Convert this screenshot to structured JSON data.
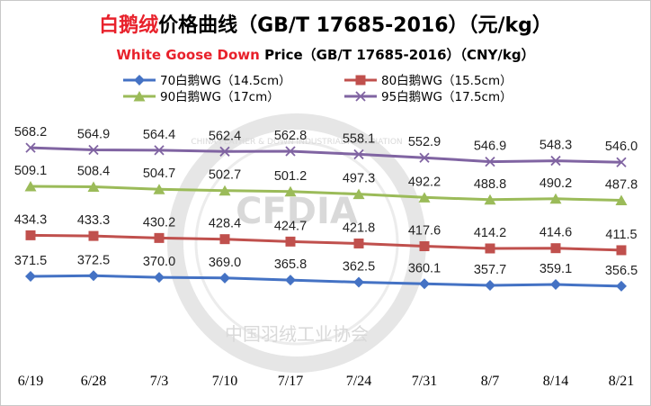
{
  "title": {
    "cn_red": "白鹅绒",
    "cn_rest": "价格曲线（GB/T 17685-2016）（元/kg）",
    "en_red": "White Goose Down",
    "en_rest": " Price（GB/T 17685-2016）（CNY/kg）"
  },
  "watermark": {
    "center": "CFDIA",
    "bottom": "中国羽绒工业协会",
    "ring": "CHINA FEATHER & DOWN INDUSTRIAL ASSOCIATION"
  },
  "colors": {
    "s70": "#4472c4",
    "s80": "#c0504d",
    "s90": "#9bbb59",
    "s95": "#8064a2"
  },
  "chart_data": {
    "type": "line",
    "title": "白鹅绒价格曲线（GB/T 17685-2016）（元/kg） White Goose Down Price（GB/T 17685-2016）（CNY/kg）",
    "categories": [
      "6/19",
      "6/28",
      "7/3",
      "7/10",
      "7/17",
      "7/24",
      "7/31",
      "8/7",
      "8/14",
      "8/21"
    ],
    "legend_position": "top",
    "grid": false,
    "ylim": [
      330,
      590
    ],
    "series": [
      {
        "name": "70白鹅WG（14.5cm）",
        "marker": "diamond",
        "values": [
          371.5,
          372.5,
          370.0,
          369.0,
          365.8,
          362.5,
          360.1,
          357.7,
          359.1,
          356.5
        ]
      },
      {
        "name": "80白鹅WG（15.5cm）",
        "marker": "square",
        "values": [
          434.3,
          433.3,
          430.2,
          428.4,
          424.7,
          421.8,
          417.6,
          414.2,
          414.6,
          411.5
        ]
      },
      {
        "name": "90白鹅WG（17cm）",
        "marker": "triangle",
        "values": [
          509.1,
          508.4,
          504.7,
          502.7,
          501.2,
          497.3,
          492.2,
          488.8,
          490.2,
          487.8
        ]
      },
      {
        "name": "95白鹅WG（17.5cm）",
        "marker": "x",
        "values": [
          568.2,
          564.9,
          564.4,
          562.4,
          562.8,
          558.1,
          552.9,
          546.9,
          548.3,
          546.0
        ]
      }
    ]
  }
}
